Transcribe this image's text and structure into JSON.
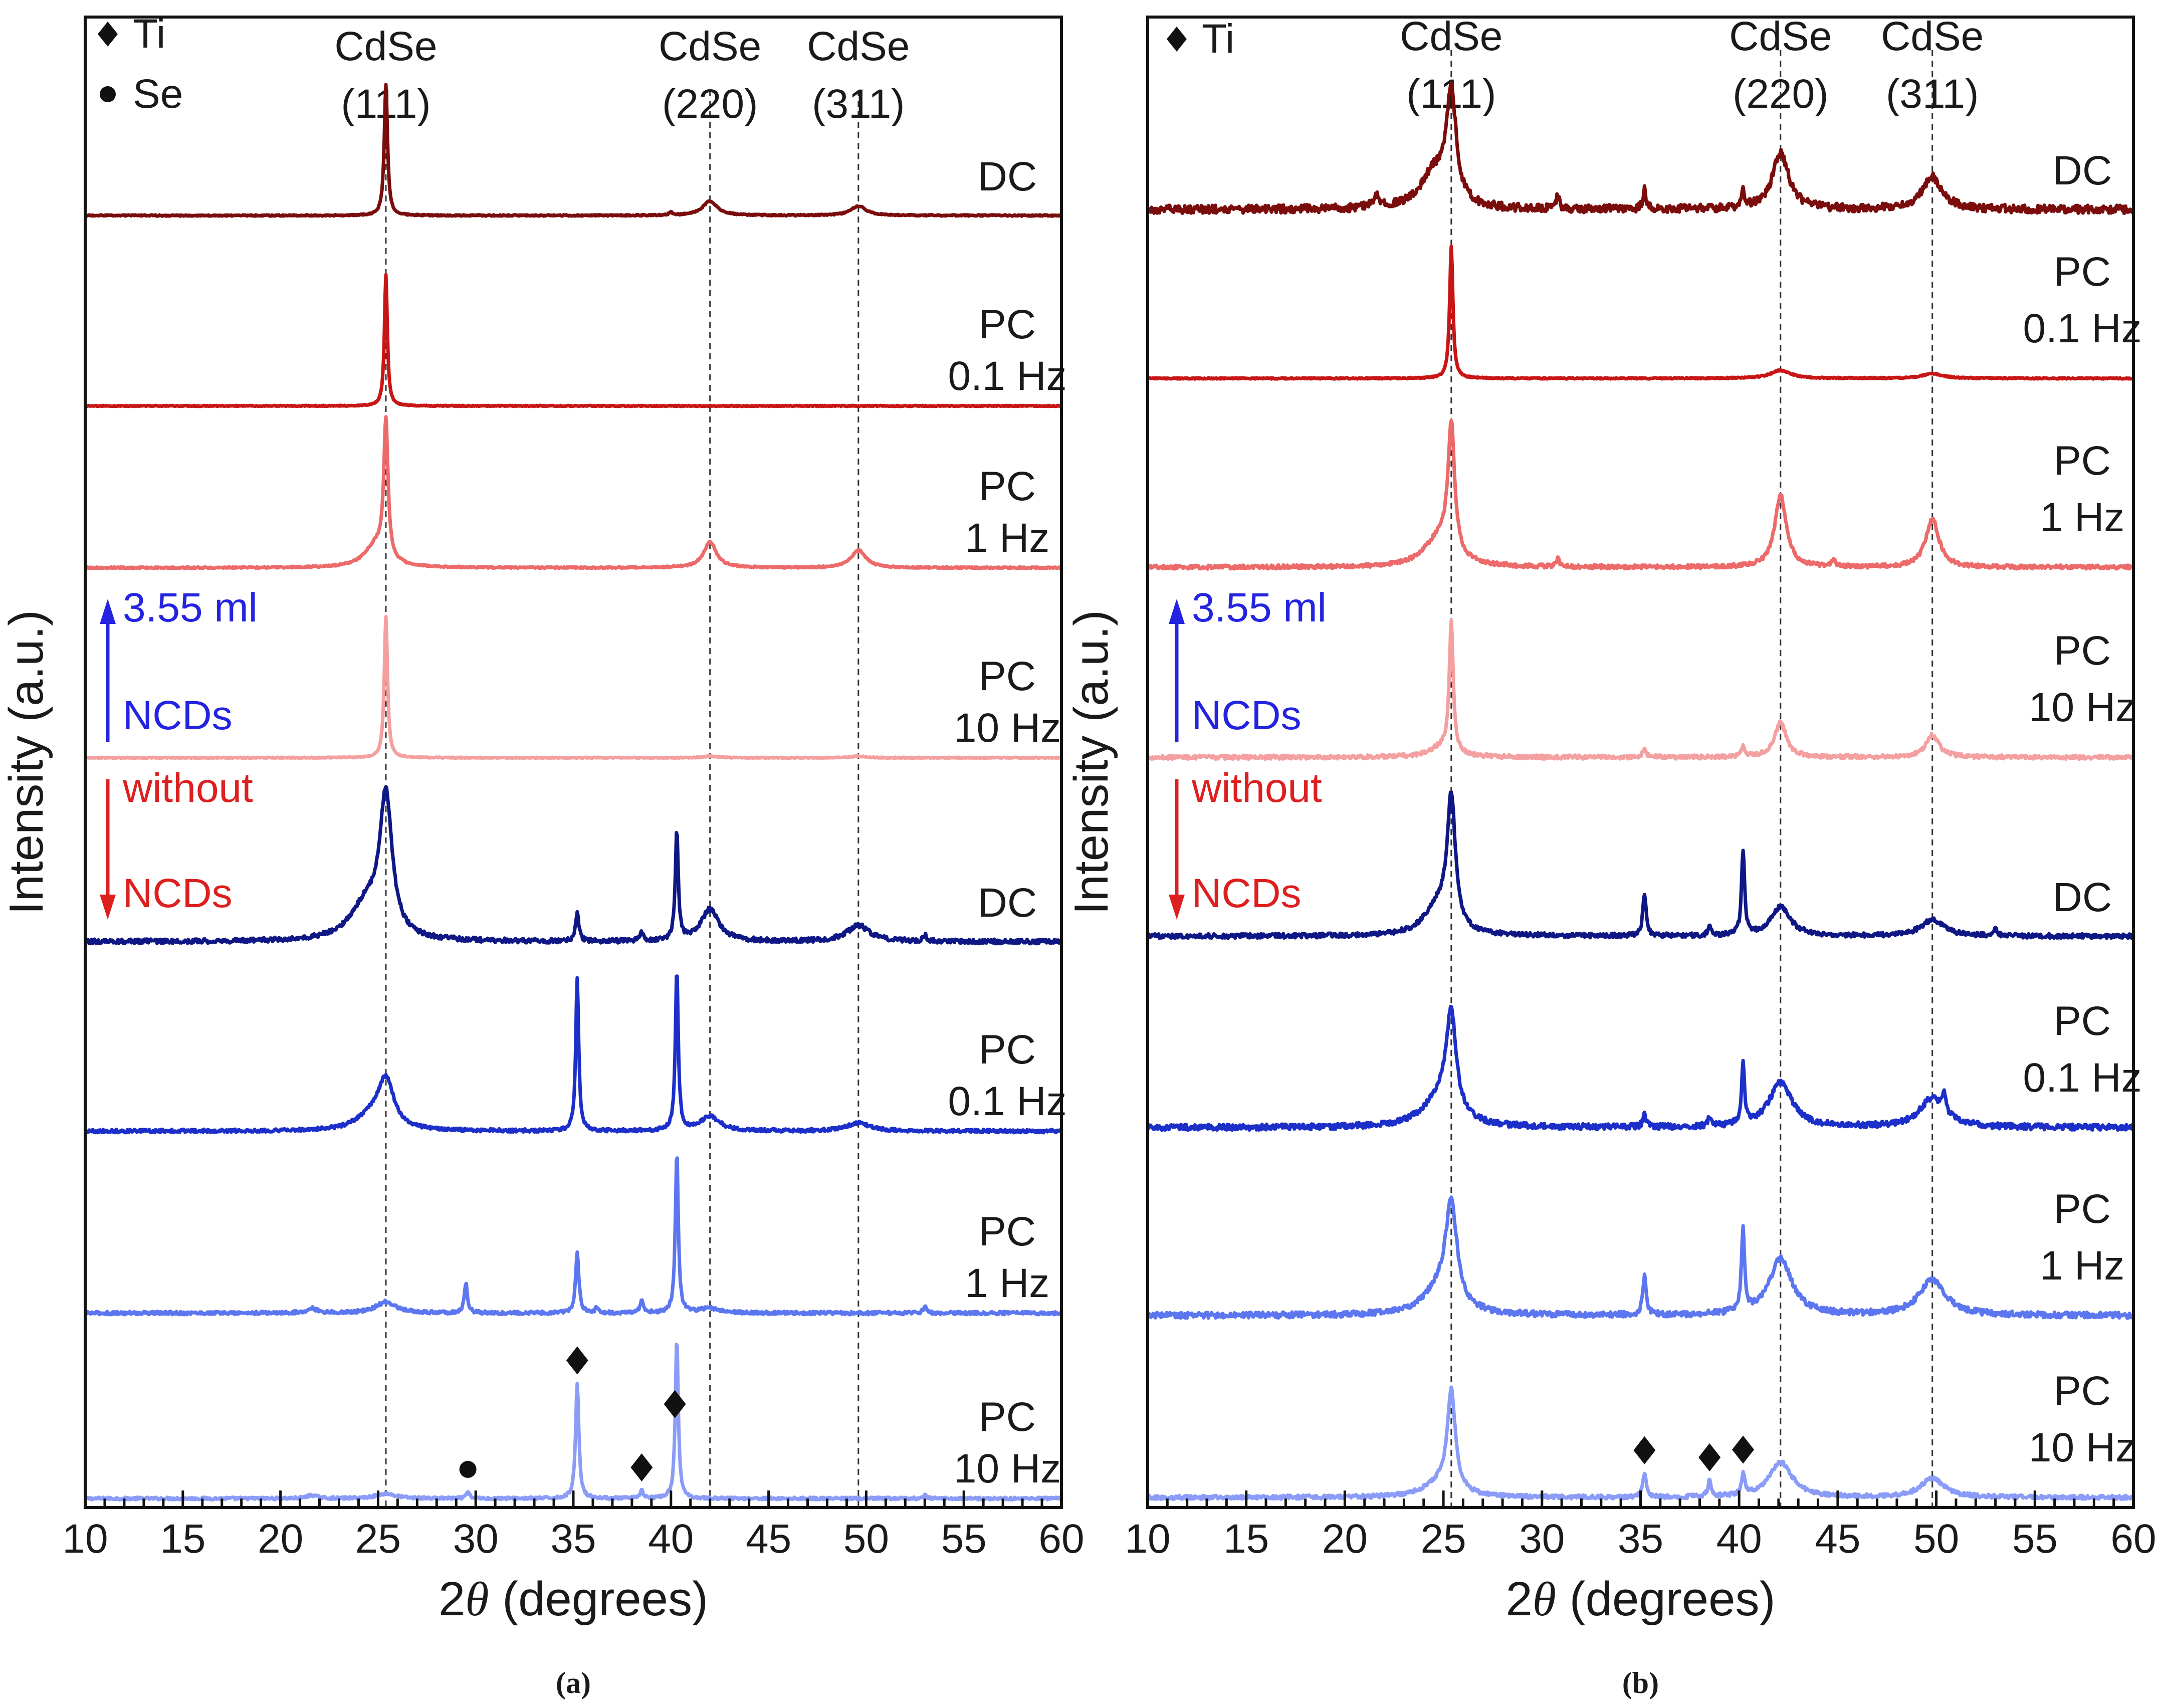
{
  "figure": {
    "ylabel": "Intensity (a.u.)"
  },
  "chart_data": [
    {
      "panel_id": "a",
      "panel_label": "(a)",
      "type": "line",
      "title": "",
      "xlabel_prefix": "2",
      "xlabel_symbol": "θ",
      "xlabel_suffix": " (degrees)",
      "ylabel": "Intensity (a.u.)",
      "xlim": [
        10,
        60
      ],
      "xticks": [
        10,
        15,
        20,
        25,
        30,
        35,
        40,
        45,
        50,
        55,
        60
      ],
      "yticks_visible": false,
      "reference_lines": [
        {
          "x": 25.4,
          "line1": "CdSe",
          "line2": "(111)"
        },
        {
          "x": 42.0,
          "line1": "CdSe",
          "line2": "(220)"
        },
        {
          "x": 49.6,
          "line1": "CdSe",
          "line2": "(311)"
        }
      ],
      "legend": [
        {
          "marker": "diamond",
          "label": "Ti"
        },
        {
          "marker": "circle",
          "label": "Se"
        }
      ],
      "phase_markers": [
        {
          "marker": "circle",
          "x": 29.6
        },
        {
          "marker": "diamond",
          "x": 35.2
        },
        {
          "marker": "diamond",
          "x": 38.5
        },
        {
          "marker": "diamond",
          "x": 40.2
        }
      ],
      "group_annotations": [
        {
          "direction": "up",
          "line1": "3.55 ml",
          "line2": "NCDs",
          "color": "#2323e0"
        },
        {
          "direction": "down",
          "line1": "without",
          "line2": "NCDs",
          "color": "#dd1f1f"
        }
      ],
      "series": [
        {
          "name": "PC 10 Hz (3.55 ml NCDs)",
          "label_line1": "PC",
          "label_line2": "10 Hz",
          "group": "with NCDs",
          "color": "#8a9cf7",
          "offset": 7,
          "baseline": 0,
          "noise": 0.008,
          "peaks": [
            {
              "x": 35.2,
              "h": 0.72,
              "w": 0.1
            },
            {
              "x": 40.3,
              "h": 1.0,
              "w": 0.09
            },
            {
              "x": 38.5,
              "h": 0.05,
              "w": 0.1
            },
            {
              "x": 29.6,
              "h": 0.04,
              "w": 0.1
            },
            {
              "x": 25.4,
              "h": 0.03,
              "w": 0.6
            },
            {
              "x": 21.6,
              "h": 0.02,
              "w": 0.3
            },
            {
              "x": 53.0,
              "h": 0.02,
              "w": 0.1
            }
          ]
        },
        {
          "name": "PC 1 Hz (3.55 ml NCDs)",
          "label_line1": "PC",
          "label_line2": "1 Hz",
          "group": "with NCDs",
          "color": "#5c76f0",
          "offset": 6,
          "baseline": 0,
          "noise": 0.01,
          "peaks": [
            {
              "x": 40.3,
              "h": 1.0,
              "w": 0.09
            },
            {
              "x": 35.2,
              "h": 0.38,
              "w": 0.1
            },
            {
              "x": 29.5,
              "h": 0.18,
              "w": 0.1
            },
            {
              "x": 38.5,
              "h": 0.08,
              "w": 0.1
            },
            {
              "x": 25.4,
              "h": 0.07,
              "w": 0.6
            },
            {
              "x": 36.2,
              "h": 0.03,
              "w": 0.1
            },
            {
              "x": 21.6,
              "h": 0.03,
              "w": 0.3
            },
            {
              "x": 53.0,
              "h": 0.04,
              "w": 0.1
            },
            {
              "x": 42.0,
              "h": 0.03,
              "w": 0.6
            }
          ]
        },
        {
          "name": "PC 0.1 Hz (3.55 ml NCDs)",
          "label_line1": "PC",
          "label_line2": "0.1 Hz",
          "group": "with NCDs",
          "color": "#1c2fc9",
          "offset": 5,
          "baseline": 0,
          "noise": 0.01,
          "peaks": [
            {
              "x": 35.2,
              "h": 0.95,
              "w": 0.09
            },
            {
              "x": 40.3,
              "h": 1.0,
              "w": 0.09
            },
            {
              "x": 25.4,
              "h": 0.3,
              "w": 0.5
            },
            {
              "x": 24.6,
              "h": 0.08,
              "w": 0.9
            },
            {
              "x": 42.0,
              "h": 0.09,
              "w": 0.6
            },
            {
              "x": 49.6,
              "h": 0.05,
              "w": 0.7
            }
          ]
        },
        {
          "name": "DC (3.55 ml NCDs)",
          "label_line1": "DC",
          "label_line2": "",
          "group": "with NCDs",
          "color": "#0f1785",
          "offset": 4,
          "baseline": 0,
          "noise": 0.014,
          "peaks": [
            {
              "x": 25.4,
              "h": 0.85,
              "w": 0.38
            },
            {
              "x": 24.4,
              "h": 0.22,
              "w": 1.0
            },
            {
              "x": 40.3,
              "h": 0.68,
              "w": 0.09
            },
            {
              "x": 35.2,
              "h": 0.17,
              "w": 0.1
            },
            {
              "x": 42.0,
              "h": 0.2,
              "w": 0.55
            },
            {
              "x": 49.6,
              "h": 0.1,
              "w": 0.7
            },
            {
              "x": 38.5,
              "h": 0.05,
              "w": 0.1
            },
            {
              "x": 53.0,
              "h": 0.04,
              "w": 0.1
            }
          ]
        },
        {
          "name": "PC 10 Hz (without NCDs)",
          "label_line1": "PC",
          "label_line2": "10 Hz",
          "group": "without NCDs",
          "color": "#f4a0a0",
          "offset": 3,
          "baseline": 0,
          "noise": 0.003,
          "peaks": [
            {
              "x": 25.4,
              "h": 0.88,
              "w": 0.1
            },
            {
              "x": 42.0,
              "h": 0.01,
              "w": 0.4
            },
            {
              "x": 49.6,
              "h": 0.01,
              "w": 0.4
            }
          ]
        },
        {
          "name": "PC 1 Hz (without NCDs)",
          "label_line1": "PC",
          "label_line2": "1 Hz",
          "group": "without NCDs",
          "color": "#ec6a6a",
          "offset": 2,
          "baseline": 0,
          "noise": 0.005,
          "peaks": [
            {
              "x": 25.4,
              "h": 0.85,
              "w": 0.13
            },
            {
              "x": 24.9,
              "h": 0.14,
              "w": 0.7
            },
            {
              "x": 42.0,
              "h": 0.16,
              "w": 0.4
            },
            {
              "x": 49.6,
              "h": 0.11,
              "w": 0.45
            }
          ]
        },
        {
          "name": "PC 0.1 Hz (without NCDs)",
          "label_line1": "PC",
          "label_line2": "0.1 Hz",
          "group": "without NCDs",
          "color": "#c81616",
          "offset": 1,
          "baseline": 0,
          "noise": 0.003,
          "peaks": [
            {
              "x": 25.4,
              "h": 0.82,
              "w": 0.09
            }
          ]
        },
        {
          "name": "DC (without NCDs)",
          "label_line1": "DC",
          "label_line2": "",
          "group": "without NCDs",
          "color": "#7a0c0c",
          "offset": 0,
          "baseline": 0,
          "noise": 0.004,
          "peaks": [
            {
              "x": 25.4,
              "h": 0.82,
              "w": 0.1
            },
            {
              "x": 42.0,
              "h": 0.09,
              "w": 0.45
            },
            {
              "x": 49.6,
              "h": 0.06,
              "w": 0.45
            },
            {
              "x": 40.0,
              "h": 0.02,
              "w": 0.1
            }
          ]
        }
      ]
    },
    {
      "panel_id": "b",
      "panel_label": "(b)",
      "type": "line",
      "title": "",
      "xlabel_prefix": "2",
      "xlabel_symbol": "θ",
      "xlabel_suffix": " (degrees)",
      "ylabel": "Intensity (a.u.)",
      "xlim": [
        10,
        60
      ],
      "xticks": [
        10,
        15,
        20,
        25,
        30,
        35,
        40,
        45,
        50,
        55,
        60
      ],
      "yticks_visible": false,
      "reference_lines": [
        {
          "x": 25.4,
          "line1": "CdSe",
          "line2": "(111)"
        },
        {
          "x": 42.1,
          "line1": "CdSe",
          "line2": "(220)"
        },
        {
          "x": 49.8,
          "line1": "CdSe",
          "line2": "(311)"
        }
      ],
      "legend": [
        {
          "marker": "diamond",
          "label": "Ti"
        }
      ],
      "phase_markers": [
        {
          "marker": "diamond",
          "x": 35.2
        },
        {
          "marker": "diamond",
          "x": 38.5
        },
        {
          "marker": "diamond",
          "x": 40.2
        }
      ],
      "group_annotations": [
        {
          "direction": "up",
          "line1": "3.55 ml",
          "line2": "NCDs",
          "color": "#2323e0"
        },
        {
          "direction": "down",
          "line1": "without",
          "line2": "NCDs",
          "color": "#dd1f1f"
        }
      ],
      "series": [
        {
          "name": "PC 10 Hz (3.55 ml NCDs)",
          "label_line1": "PC",
          "label_line2": "10 Hz",
          "group": "with NCDs",
          "color": "#8a9cf7",
          "offset": 7,
          "baseline": 0,
          "noise": 0.012,
          "peaks": [
            {
              "x": 25.4,
              "h": 0.62,
              "w": 0.25
            },
            {
              "x": 24.8,
              "h": 0.08,
              "w": 1.0
            },
            {
              "x": 42.1,
              "h": 0.22,
              "w": 0.7
            },
            {
              "x": 49.8,
              "h": 0.12,
              "w": 0.7
            },
            {
              "x": 35.2,
              "h": 0.15,
              "w": 0.1
            },
            {
              "x": 38.5,
              "h": 0.1,
              "w": 0.1
            },
            {
              "x": 40.2,
              "h": 0.13,
              "w": 0.1
            }
          ]
        },
        {
          "name": "PC 1 Hz (3.55 ml NCDs)",
          "label_line1": "PC",
          "label_line2": "1 Hz",
          "group": "with NCDs",
          "color": "#5c76f0",
          "offset": 6,
          "baseline": 0,
          "noise": 0.018,
          "peaks": [
            {
              "x": 25.4,
              "h": 0.62,
              "w": 0.35
            },
            {
              "x": 24.8,
              "h": 0.15,
              "w": 1.0
            },
            {
              "x": 42.1,
              "h": 0.35,
              "w": 0.7
            },
            {
              "x": 49.8,
              "h": 0.22,
              "w": 0.8
            },
            {
              "x": 35.2,
              "h": 0.25,
              "w": 0.1
            },
            {
              "x": 40.2,
              "h": 0.53,
              "w": 0.09
            }
          ]
        },
        {
          "name": "PC 0.1 Hz (3.55 ml NCDs)",
          "label_line1": "PC",
          "label_line2": "0.1 Hz",
          "group": "with NCDs",
          "color": "#1c2fc9",
          "offset": 5,
          "baseline": 0,
          "noise": 0.018,
          "peaks": [
            {
              "x": 25.4,
              "h": 0.62,
              "w": 0.3
            },
            {
              "x": 24.8,
              "h": 0.18,
              "w": 1.0
            },
            {
              "x": 42.1,
              "h": 0.28,
              "w": 0.7
            },
            {
              "x": 49.8,
              "h": 0.18,
              "w": 0.8
            },
            {
              "x": 40.2,
              "h": 0.38,
              "w": 0.09
            },
            {
              "x": 35.2,
              "h": 0.08,
              "w": 0.1
            },
            {
              "x": 38.5,
              "h": 0.06,
              "w": 0.1
            },
            {
              "x": 50.4,
              "h": 0.1,
              "w": 0.1
            }
          ]
        },
        {
          "name": "DC (3.55 ml NCDs)",
          "label_line1": "DC",
          "label_line2": "",
          "group": "with NCDs",
          "color": "#0f1785",
          "offset": 4,
          "baseline": 0,
          "noise": 0.014,
          "peaks": [
            {
              "x": 25.4,
              "h": 0.8,
              "w": 0.25
            },
            {
              "x": 24.7,
              "h": 0.18,
              "w": 0.8
            },
            {
              "x": 40.2,
              "h": 0.53,
              "w": 0.09
            },
            {
              "x": 35.2,
              "h": 0.27,
              "w": 0.1
            },
            {
              "x": 42.1,
              "h": 0.18,
              "w": 0.6
            },
            {
              "x": 49.8,
              "h": 0.1,
              "w": 0.7
            },
            {
              "x": 38.5,
              "h": 0.05,
              "w": 0.1
            },
            {
              "x": 53.0,
              "h": 0.05,
              "w": 0.1
            }
          ]
        },
        {
          "name": "PC 10 Hz (without NCDs)",
          "label_line1": "PC",
          "label_line2": "10 Hz",
          "group": "without NCDs",
          "color": "#f4a0a0",
          "offset": 3,
          "baseline": 0,
          "noise": 0.012,
          "peaks": [
            {
              "x": 25.4,
              "h": 0.82,
              "w": 0.12
            },
            {
              "x": 24.9,
              "h": 0.06,
              "w": 0.7
            },
            {
              "x": 42.1,
              "h": 0.22,
              "w": 0.35
            },
            {
              "x": 49.8,
              "h": 0.14,
              "w": 0.4
            },
            {
              "x": 35.2,
              "h": 0.06,
              "w": 0.1
            },
            {
              "x": 40.2,
              "h": 0.07,
              "w": 0.1
            }
          ]
        },
        {
          "name": "PC 1 Hz (without NCDs)",
          "label_line1": "PC",
          "label_line2": "1 Hz",
          "group": "without NCDs",
          "color": "#ec6a6a",
          "offset": 2,
          "baseline": 0,
          "noise": 0.012,
          "peaks": [
            {
              "x": 25.4,
              "h": 0.8,
              "w": 0.2
            },
            {
              "x": 24.8,
              "h": 0.18,
              "w": 0.9
            },
            {
              "x": 42.1,
              "h": 0.45,
              "w": 0.35
            },
            {
              "x": 49.8,
              "h": 0.3,
              "w": 0.4
            },
            {
              "x": 30.8,
              "h": 0.05,
              "w": 0.1
            },
            {
              "x": 44.8,
              "h": 0.05,
              "w": 0.1
            }
          ]
        },
        {
          "name": "PC 0.1 Hz (without NCDs)",
          "label_line1": "PC",
          "label_line2": "0.1 Hz",
          "group": "without NCDs",
          "color": "#c81616",
          "offset": 1,
          "baseline": 0,
          "noise": 0.004,
          "peaks": [
            {
              "x": 25.4,
              "h": 0.82,
              "w": 0.1
            },
            {
              "x": 42.1,
              "h": 0.05,
              "w": 0.6
            },
            {
              "x": 49.8,
              "h": 0.03,
              "w": 0.6
            }
          ]
        },
        {
          "name": "DC (without NCDs)",
          "label_line1": "DC",
          "label_line2": "",
          "group": "without NCDs",
          "color": "#7a0c0c",
          "offset": 0,
          "baseline": 0,
          "noise": 0.025,
          "peaks": [
            {
              "x": 25.4,
              "h": 0.68,
              "w": 0.3
            },
            {
              "x": 24.5,
              "h": 0.22,
              "w": 0.8
            },
            {
              "x": 42.1,
              "h": 0.35,
              "w": 0.5
            },
            {
              "x": 49.8,
              "h": 0.2,
              "w": 0.6
            },
            {
              "x": 21.6,
              "h": 0.07,
              "w": 0.2
            },
            {
              "x": 30.8,
              "h": 0.08,
              "w": 0.1
            },
            {
              "x": 35.2,
              "h": 0.12,
              "w": 0.1
            },
            {
              "x": 40.2,
              "h": 0.1,
              "w": 0.1
            }
          ]
        }
      ]
    }
  ]
}
